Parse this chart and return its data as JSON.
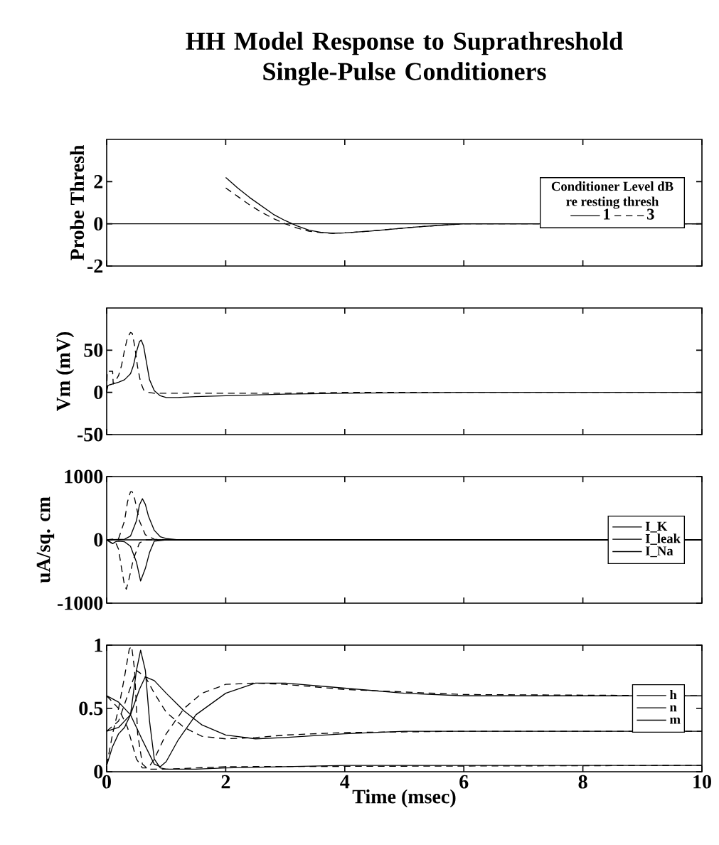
{
  "chart_data": [
    {
      "type": "line",
      "title": "HH Model Response to Suprathreshold Single-Pulse Conditioners",
      "ylabel": "Probe Thresh",
      "xlim": [
        0,
        10
      ],
      "ylim": [
        -2,
        4
      ],
      "xticks": [
        0,
        2,
        4,
        6,
        8,
        10
      ],
      "yticks": [
        -2,
        0,
        2
      ],
      "tick_labels": "y",
      "legend": "right",
      "legend_title": "Conditioner Level dB re resting thresh",
      "ref_lines": [
        {
          "axis": "y",
          "value": 0
        }
      ],
      "series": [
        {
          "name": "1",
          "color": "#000000",
          "line_style": "solid",
          "x": [
            2.0,
            2.2,
            2.4,
            2.6,
            2.8,
            3.0,
            3.2,
            3.4,
            3.6,
            3.8,
            4.0,
            4.4,
            4.8,
            5.2,
            5.6,
            6.0,
            7,
            8,
            9,
            10
          ],
          "values": [
            2.2,
            1.7,
            1.25,
            0.85,
            0.45,
            0.15,
            -0.1,
            -0.3,
            -0.4,
            -0.45,
            -0.43,
            -0.35,
            -0.25,
            -0.15,
            -0.07,
            0,
            0,
            null,
            null,
            0
          ]
        },
        {
          "name": "3",
          "color": "#000000",
          "line_style": "dashed",
          "x": [
            2.0,
            2.2,
            2.4,
            2.6,
            2.8,
            3.0,
            3.2,
            3.4,
            3.6,
            3.8,
            4.0,
            4.4,
            4.8,
            5.2,
            5.6,
            6.0,
            7,
            8,
            9,
            10
          ],
          "values": [
            1.7,
            1.3,
            0.9,
            0.55,
            0.25,
            0.0,
            -0.2,
            -0.35,
            -0.42,
            -0.45,
            -0.43,
            -0.35,
            -0.25,
            -0.15,
            -0.07,
            0,
            0,
            null,
            null,
            0
          ]
        }
      ]
    },
    {
      "type": "line",
      "ylabel": "Vm (mV)",
      "xlim": [
        0,
        10
      ],
      "ylim": [
        -50,
        100
      ],
      "xticks": [
        0,
        2,
        4,
        6,
        8,
        10
      ],
      "yticks": [
        -50,
        0,
        50
      ],
      "tick_labels": "y",
      "series": [
        {
          "color": "#000000",
          "line_style": "solid",
          "x": [
            0,
            0.02,
            0.05,
            0.1,
            0.2,
            0.3,
            0.4,
            0.45,
            0.5,
            0.55,
            0.58,
            0.62,
            0.67,
            0.72,
            0.8,
            0.9,
            1.0,
            1.2,
            1.5,
            2,
            3,
            4,
            6,
            8,
            10
          ],
          "values": [
            0,
            8,
            9,
            10,
            12,
            15,
            22,
            32,
            48,
            60,
            62,
            55,
            35,
            15,
            2,
            -4,
            -6,
            -6,
            -5,
            -4,
            -2,
            -1,
            0,
            0,
            0
          ]
        },
        {
          "color": "#000000",
          "line_style": "dashed",
          "x": [
            0,
            0.01,
            0.1,
            0.11,
            0.15,
            0.2,
            0.25,
            0.3,
            0.35,
            0.4,
            0.43,
            0.47,
            0.52,
            0.57,
            0.62,
            0.7,
            0.8,
            1.0,
            1.5,
            2,
            3,
            4,
            6,
            10
          ],
          "values": [
            0,
            25,
            25,
            10,
            14,
            20,
            32,
            50,
            65,
            71,
            70,
            55,
            30,
            12,
            3,
            0,
            -1,
            -1,
            -1,
            -1,
            -1,
            0,
            0,
            0
          ]
        }
      ]
    },
    {
      "type": "line",
      "ylabel": "uA/sq. cm",
      "xlim": [
        0,
        10
      ],
      "ylim": [
        -1000,
        1000
      ],
      "xticks": [
        0,
        2,
        4,
        6,
        8,
        10
      ],
      "yticks": [
        -1000,
        0,
        1000
      ],
      "tick_labels": "y",
      "legend": "right",
      "series": [
        {
          "name": "I_K",
          "color": "#000000",
          "line_style": "solid",
          "x": [
            0,
            0.3,
            0.4,
            0.5,
            0.55,
            0.6,
            0.65,
            0.7,
            0.8,
            0.9,
            1.0,
            1.2,
            10
          ],
          "values": [
            0,
            10,
            60,
            300,
            550,
            650,
            560,
            380,
            150,
            50,
            20,
            0,
            0
          ]
        },
        {
          "name": "I_leak",
          "color": "#000000",
          "line_style": "solid",
          "x": [
            0,
            10
          ],
          "values": [
            0,
            0
          ]
        },
        {
          "name": "I_Na",
          "color": "#000000",
          "line_style": "solid",
          "x": [
            0,
            0.05,
            0.1,
            0.15,
            0.2,
            0.3,
            0.4,
            0.5,
            0.57,
            0.65,
            0.72,
            0.8,
            1.0,
            10
          ],
          "values": [
            0,
            -30,
            -60,
            -30,
            -20,
            -30,
            -100,
            -350,
            -650,
            -450,
            -200,
            -20,
            0,
            0
          ]
        },
        {
          "color": "#000000",
          "line_style": "dashed",
          "x": [
            0,
            0.2,
            0.3,
            0.35,
            0.4,
            0.43,
            0.47,
            0.55,
            0.65,
            0.8,
            1.0,
            10
          ],
          "values": [
            0,
            20,
            300,
            600,
            760,
            760,
            650,
            300,
            80,
            10,
            0,
            0
          ]
        },
        {
          "color": "#000000",
          "line_style": "dashed",
          "x": [
            0,
            0.05,
            0.1,
            0.15,
            0.2,
            0.25,
            0.3,
            0.33,
            0.38,
            0.45,
            0.55,
            0.65,
            10
          ],
          "values": [
            0,
            -30,
            -60,
            -40,
            -150,
            -450,
            -720,
            -780,
            -600,
            -300,
            -50,
            0,
            0
          ]
        }
      ]
    },
    {
      "type": "line",
      "xlabel": "Time (msec)",
      "xlim": [
        0,
        10
      ],
      "ylim": [
        0,
        1
      ],
      "xticks": [
        0,
        2,
        4,
        6,
        8,
        10
      ],
      "yticks": [
        0,
        0.5,
        1
      ],
      "legend": "right",
      "series": [
        {
          "name": "h",
          "color": "#000000",
          "line_style": "solid",
          "x": [
            0,
            0.2,
            0.4,
            0.6,
            0.8,
            0.9,
            1.0,
            1.2,
            1.5,
            2.0,
            2.5,
            3,
            4,
            5,
            6,
            10
          ],
          "values": [
            0.6,
            0.55,
            0.45,
            0.25,
            0.06,
            0.04,
            0.08,
            0.25,
            0.45,
            0.62,
            0.7,
            0.7,
            0.66,
            0.62,
            0.6,
            0.6
          ]
        },
        {
          "name": "n",
          "color": "#000000",
          "line_style": "solid",
          "x": [
            0,
            0.2,
            0.4,
            0.55,
            0.65,
            0.8,
            1.0,
            1.3,
            1.6,
            2.0,
            2.5,
            3.0,
            4,
            5,
            6,
            10
          ],
          "values": [
            0.32,
            0.35,
            0.45,
            0.65,
            0.75,
            0.72,
            0.62,
            0.48,
            0.37,
            0.29,
            0.26,
            0.27,
            0.3,
            0.32,
            0.32,
            0.32
          ]
        },
        {
          "name": "m",
          "color": "#000000",
          "line_style": "solid",
          "x": [
            0,
            0.1,
            0.2,
            0.3,
            0.4,
            0.5,
            0.57,
            0.65,
            0.72,
            0.8,
            0.9,
            1.0,
            1.5,
            2,
            3,
            4,
            6,
            10
          ],
          "values": [
            0.05,
            0.2,
            0.3,
            0.35,
            0.45,
            0.8,
            0.96,
            0.8,
            0.4,
            0.1,
            0.03,
            0.02,
            0.02,
            0.03,
            0.04,
            0.05,
            0.05,
            0.05
          ]
        },
        {
          "color": "#000000",
          "line_style": "dashed",
          "x": [
            0,
            0.2,
            0.35,
            0.5,
            0.6,
            0.7,
            0.8,
            1.0,
            1.3,
            1.6,
            2,
            2.5,
            3,
            4,
            6,
            10
          ],
          "values": [
            0.6,
            0.5,
            0.35,
            0.1,
            0.03,
            0.03,
            0.1,
            0.3,
            0.5,
            0.62,
            0.69,
            0.7,
            0.69,
            0.65,
            0.61,
            0.6
          ]
        },
        {
          "color": "#000000",
          "line_style": "dashed",
          "x": [
            0,
            0.2,
            0.35,
            0.5,
            0.65,
            0.8,
            1.0,
            1.3,
            1.6,
            2,
            2.5,
            3,
            4,
            6,
            10
          ],
          "values": [
            0.32,
            0.4,
            0.6,
            0.8,
            0.75,
            0.62,
            0.47,
            0.35,
            0.28,
            0.26,
            0.27,
            0.29,
            0.31,
            0.32,
            0.32
          ]
        },
        {
          "color": "#000000",
          "line_style": "dashed",
          "x": [
            0,
            0.1,
            0.2,
            0.3,
            0.38,
            0.42,
            0.47,
            0.52,
            0.6,
            0.7,
            1,
            2,
            10
          ],
          "values": [
            0.05,
            0.3,
            0.5,
            0.75,
            0.97,
            0.99,
            0.8,
            0.3,
            0.06,
            0.02,
            0.02,
            0.04,
            0.05
          ]
        }
      ]
    }
  ]
}
